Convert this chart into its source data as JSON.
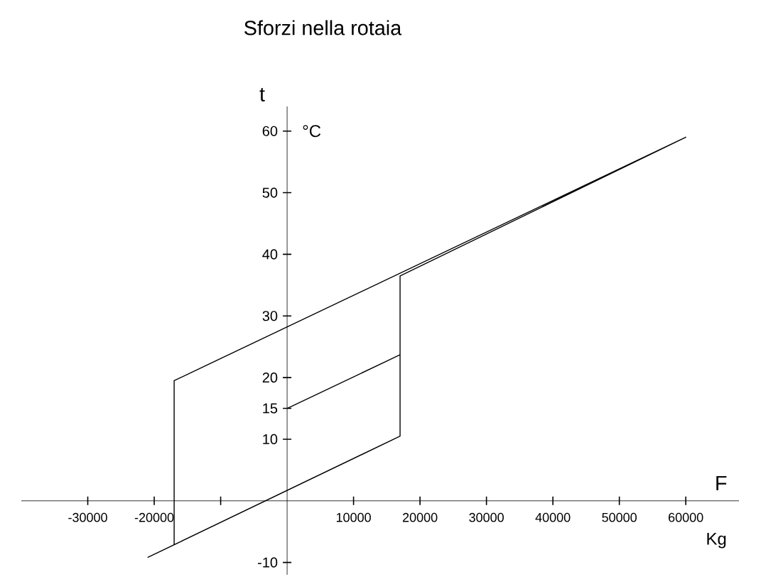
{
  "chart_data": {
    "type": "line",
    "title": "Sforzi nella rotaia",
    "xlabel": "F",
    "ylabel": "t",
    "annotations": [
      "°C",
      "Kg"
    ],
    "series": [
      {
        "color": "#000000",
        "x": [
          -21000,
          17000,
          17000,
          60000,
          -17000,
          -17000,
          null,
          0,
          17000
        ],
        "values": [
          -9.2,
          10.5,
          36.5,
          59,
          19.5,
          -7.2,
          null,
          15,
          23.7
        ]
      }
    ],
    "xlim": [
      -40000,
      68000
    ],
    "ylim": [
      -12,
      64
    ],
    "xticks": [
      -30000,
      -20000,
      {
        "value": -10000,
        "label": null
      },
      10000,
      20000,
      30000,
      40000,
      50000,
      60000
    ],
    "yticks": [
      -10,
      10,
      15,
      20,
      30,
      40,
      50,
      60
    ],
    "grid": false,
    "marker": "none",
    "line_style": "solid"
  }
}
